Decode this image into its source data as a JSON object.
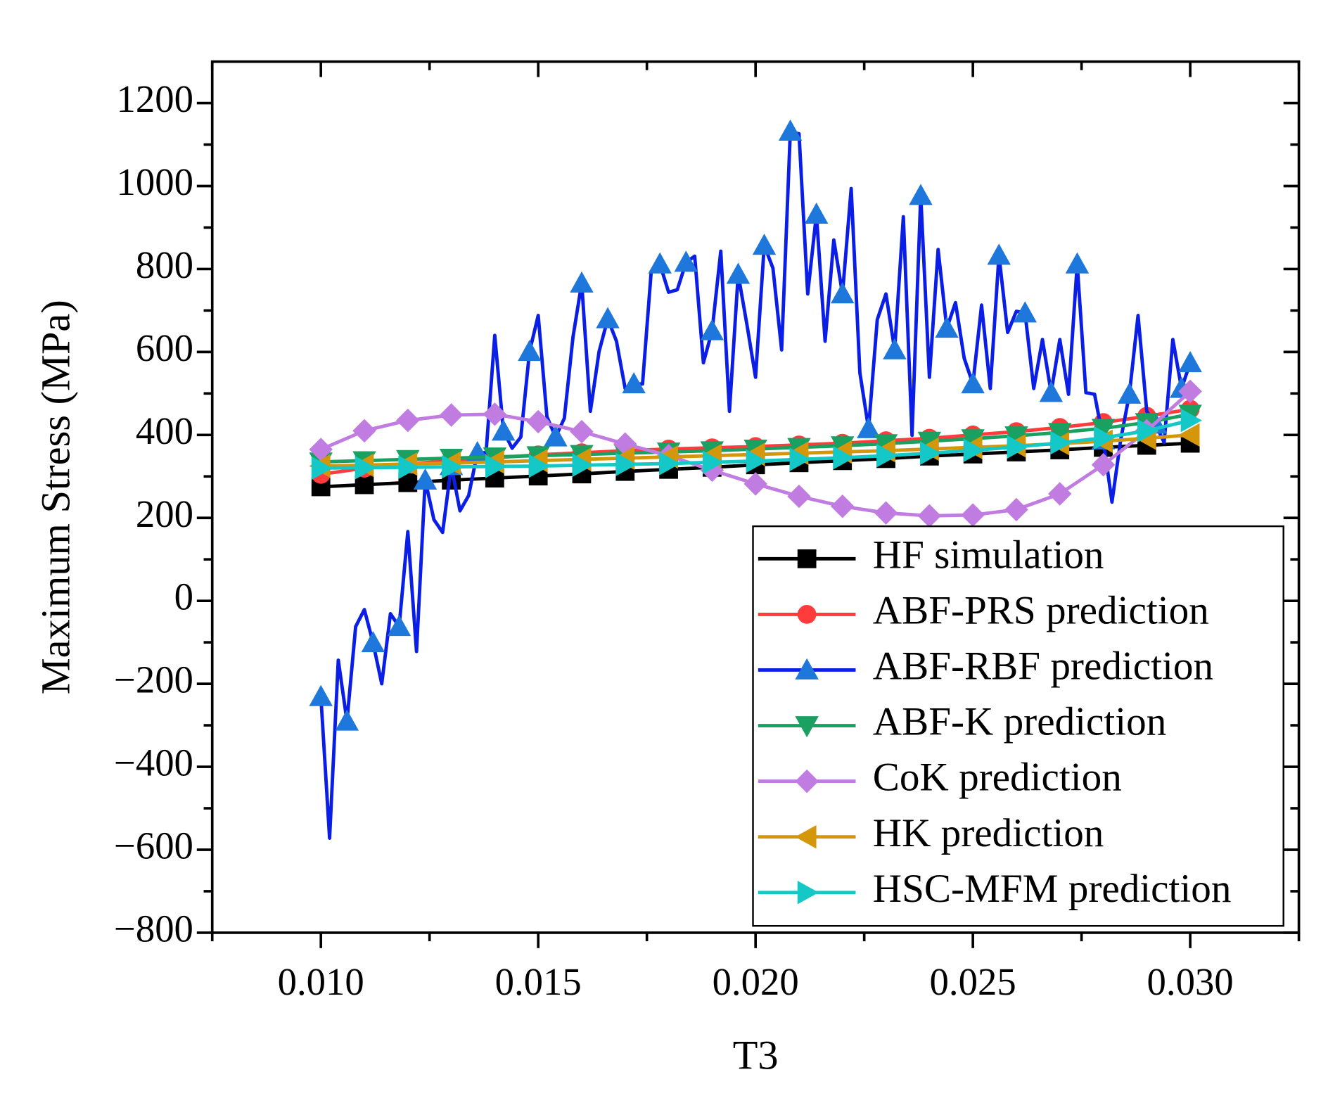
{
  "chart_data": {
    "type": "line",
    "xlabel": "T3",
    "ylabel": "Maximum Stress (MPa)",
    "xlim": [
      0.0075,
      0.0325
    ],
    "ylim": [
      -800,
      1300
    ],
    "xticks": [
      {
        "value": 0.01,
        "label": "0.010"
      },
      {
        "value": 0.015,
        "label": "0.015"
      },
      {
        "value": 0.02,
        "label": "0.020"
      },
      {
        "value": 0.025,
        "label": "0.025"
      },
      {
        "value": 0.03,
        "label": "0.030"
      }
    ],
    "xminorticks": [
      0.0075,
      0.0125,
      0.0175,
      0.0225,
      0.0275,
      0.0325
    ],
    "yticks": [
      {
        "value": -800,
        "label": "−800"
      },
      {
        "value": -600,
        "label": "−600"
      },
      {
        "value": -400,
        "label": "−400"
      },
      {
        "value": -200,
        "label": "−200"
      },
      0,
      200,
      400,
      600,
      800,
      1000,
      1200
    ],
    "yminorticks": [
      -700,
      -500,
      -300,
      -100,
      100,
      300,
      500,
      700,
      900,
      1100
    ],
    "legend": "lower right",
    "series": [
      {
        "name": "HF simulation",
        "color": "#000000",
        "marker": "square",
        "x": [
          0.01,
          0.011,
          0.012,
          0.013,
          0.014,
          0.015,
          0.016,
          0.017,
          0.018,
          0.019,
          0.02,
          0.021,
          0.022,
          0.023,
          0.024,
          0.025,
          0.026,
          0.027,
          0.028,
          0.029,
          0.03
        ],
        "values": [
          275,
          280,
          285,
          291,
          296,
          301,
          306,
          312,
          317,
          322,
          328,
          333,
          338,
          343,
          349,
          354,
          359,
          364,
          370,
          375,
          380
        ]
      },
      {
        "name": "ABF-PRS prediction",
        "color": "#ff3b3b",
        "marker": "circle",
        "x": [
          0.01,
          0.011,
          0.012,
          0.013,
          0.014,
          0.015,
          0.016,
          0.017,
          0.018,
          0.019,
          0.02,
          0.021,
          0.022,
          0.023,
          0.024,
          0.025,
          0.026,
          0.027,
          0.028,
          0.029,
          0.03
        ],
        "values": [
          305,
          320,
          330,
          338,
          345,
          352,
          357,
          362,
          366,
          369,
          372,
          376,
          380,
          386,
          392,
          400,
          408,
          418,
          430,
          445,
          462
        ]
      },
      {
        "name": "ABF-RBF prediction",
        "color": "#0a1ee6",
        "marker_color": "#1e78dc",
        "marker": "triangle-up",
        "marker_every": 3,
        "x": [
          0.01,
          0.0102,
          0.0104,
          0.0106,
          0.0108,
          0.011,
          0.0112,
          0.0114,
          0.0116,
          0.0118,
          0.012,
          0.0122,
          0.0124,
          0.0126,
          0.0128,
          0.013,
          0.0132,
          0.0134,
          0.0136,
          0.0138,
          0.014,
          0.0142,
          0.0144,
          0.0146,
          0.0148,
          0.015,
          0.0152,
          0.0154,
          0.0156,
          0.0158,
          0.016,
          0.0162,
          0.0164,
          0.0166,
          0.0168,
          0.017,
          0.0172,
          0.0174,
          0.0176,
          0.0178,
          0.018,
          0.0182,
          0.0184,
          0.0186,
          0.0188,
          0.019,
          0.0192,
          0.0194,
          0.0196,
          0.0198,
          0.02,
          0.0202,
          0.0204,
          0.0206,
          0.0208,
          0.021,
          0.0212,
          0.0214,
          0.0216,
          0.0218,
          0.022,
          0.0222,
          0.0224,
          0.0226,
          0.0228,
          0.023,
          0.0232,
          0.0234,
          0.0236,
          0.0238,
          0.024,
          0.0242,
          0.0244,
          0.0246,
          0.0248,
          0.025,
          0.0252,
          0.0254,
          0.0256,
          0.0258,
          0.026,
          0.0262,
          0.0264,
          0.0266,
          0.0268,
          0.027,
          0.0272,
          0.0274,
          0.0276,
          0.0278,
          0.028,
          0.0282,
          0.0284,
          0.0286,
          0.0288,
          0.029,
          0.0292,
          0.0294,
          0.0296,
          0.0298,
          0.03
        ],
        "values": [
          -231,
          -572,
          -143,
          -290,
          -62,
          -21,
          -101,
          -200,
          -31,
          -62,
          167,
          -122,
          291,
          196,
          165,
          326,
          217,
          254,
          357,
          357,
          640,
          409,
          368,
          395,
          601,
          688,
          444,
          395,
          440,
          636,
          766,
          457,
          601,
          680,
          626,
          512,
          523,
          523,
          795,
          812,
          744,
          750,
          816,
          831,
          574,
          651,
          843,
          457,
          787,
          667,
          539,
          857,
          802,
          605,
          1132,
          1126,
          740,
          932,
          626,
          870,
          740,
          994,
          550,
          415,
          678,
          740,
          605,
          926,
          399,
          977,
          539,
          847,
          657,
          719,
          585,
          523,
          713,
          512,
          833,
          647,
          698,
          694,
          512,
          630,
          502,
          630,
          498,
          812,
          502,
          498,
          388,
          238,
          388,
          498,
          688,
          457,
          426,
          382,
          630,
          512,
          574
        ]
      },
      {
        "name": "ABF-K prediction",
        "color": "#1aa060",
        "marker": "triangle-down",
        "x": [
          0.01,
          0.011,
          0.012,
          0.013,
          0.014,
          0.015,
          0.016,
          0.017,
          0.018,
          0.019,
          0.02,
          0.021,
          0.022,
          0.023,
          0.024,
          0.025,
          0.026,
          0.027,
          0.028,
          0.029,
          0.03
        ],
        "values": [
          335,
          338,
          341,
          344,
          347,
          350,
          353,
          356,
          359,
          362,
          366,
          370,
          374,
          379,
          385,
          391,
          398,
          406,
          416,
          430,
          450
        ]
      },
      {
        "name": "CoK prediction",
        "color": "#c07ce0",
        "marker": "diamond",
        "x": [
          0.01,
          0.011,
          0.012,
          0.013,
          0.014,
          0.015,
          0.016,
          0.017,
          0.018,
          0.019,
          0.02,
          0.021,
          0.022,
          0.023,
          0.024,
          0.025,
          0.026,
          0.027,
          0.028,
          0.029,
          0.03
        ],
        "values": [
          365,
          410,
          435,
          448,
          450,
          432,
          408,
          378,
          350,
          315,
          282,
          252,
          228,
          212,
          205,
          207,
          220,
          258,
          328,
          410,
          505
        ]
      },
      {
        "name": "HK prediction",
        "color": "#d4960a",
        "marker": "triangle-left",
        "x": [
          0.01,
          0.011,
          0.012,
          0.013,
          0.014,
          0.015,
          0.016,
          0.017,
          0.018,
          0.019,
          0.02,
          0.021,
          0.022,
          0.023,
          0.024,
          0.025,
          0.026,
          0.027,
          0.028,
          0.029,
          0.03
        ],
        "values": [
          325,
          327,
          330,
          332,
          335,
          338,
          341,
          344,
          347,
          350,
          353,
          356,
          359,
          362,
          366,
          370,
          374,
          379,
          385,
          392,
          400
        ]
      },
      {
        "name": "HSC-MFM prediction",
        "color": "#14c8c8",
        "marker": "triangle-right",
        "x": [
          0.01,
          0.011,
          0.012,
          0.013,
          0.014,
          0.015,
          0.016,
          0.017,
          0.018,
          0.019,
          0.02,
          0.021,
          0.022,
          0.023,
          0.024,
          0.025,
          0.026,
          0.027,
          0.028,
          0.029,
          0.03
        ],
        "values": [
          320,
          321,
          322,
          323,
          324,
          325,
          327,
          329,
          331,
          334,
          337,
          341,
          345,
          350,
          356,
          363,
          371,
          381,
          393,
          410,
          435
        ]
      }
    ]
  }
}
